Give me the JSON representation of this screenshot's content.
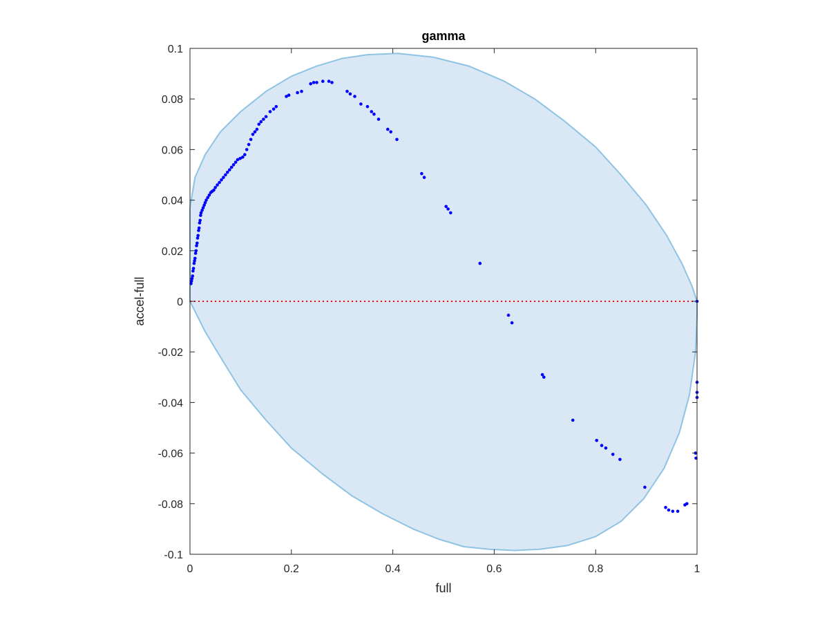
{
  "chart_data": {
    "type": "scatter",
    "title": "gamma",
    "xlabel": "full",
    "ylabel": "accel-full",
    "xlim": [
      0,
      1
    ],
    "ylim": [
      -0.1,
      0.1
    ],
    "x_ticks": [
      0,
      0.2,
      0.4,
      0.6,
      0.8,
      1
    ],
    "x_tick_labels": [
      "0",
      "0.2",
      "0.4",
      "0.6",
      "0.8",
      "1"
    ],
    "y_ticks": [
      -0.1,
      -0.08,
      -0.06,
      -0.04,
      -0.02,
      0,
      0.02,
      0.04,
      0.06,
      0.08,
      0.1
    ],
    "y_tick_labels": [
      "-0.1",
      "-0.08",
      "-0.06",
      "-0.04",
      "-0.02",
      "0",
      "0.02",
      "0.04",
      "0.06",
      "0.08",
      "0.1"
    ],
    "grid": false,
    "reference_line": {
      "y": 0,
      "color": "#ff0000",
      "style": "dotted"
    },
    "region": {
      "fill": "#d9e8f4",
      "stroke": "#8fc3e3",
      "boundary": [
        [
          0.0,
          0.037
        ],
        [
          0.01,
          0.049
        ],
        [
          0.03,
          0.058
        ],
        [
          0.06,
          0.067
        ],
        [
          0.1,
          0.075
        ],
        [
          0.15,
          0.083
        ],
        [
          0.2,
          0.089
        ],
        [
          0.25,
          0.093
        ],
        [
          0.3,
          0.096
        ],
        [
          0.35,
          0.0975
        ],
        [
          0.41,
          0.098
        ],
        [
          0.48,
          0.0965
        ],
        [
          0.55,
          0.093
        ],
        [
          0.62,
          0.087
        ],
        [
          0.68,
          0.08
        ],
        [
          0.74,
          0.071
        ],
        [
          0.8,
          0.061
        ],
        [
          0.85,
          0.05
        ],
        [
          0.9,
          0.038
        ],
        [
          0.94,
          0.026
        ],
        [
          0.97,
          0.015
        ],
        [
          0.99,
          0.006
        ],
        [
          1.0,
          0.0
        ],
        [
          1.0,
          -0.006
        ],
        [
          0.997,
          -0.02
        ],
        [
          0.985,
          -0.037
        ],
        [
          0.965,
          -0.052
        ],
        [
          0.935,
          -0.066
        ],
        [
          0.895,
          -0.078
        ],
        [
          0.85,
          -0.087
        ],
        [
          0.8,
          -0.093
        ],
        [
          0.745,
          -0.0965
        ],
        [
          0.69,
          -0.098
        ],
        [
          0.64,
          -0.0985
        ],
        [
          0.59,
          -0.098
        ],
        [
          0.54,
          -0.097
        ],
        [
          0.49,
          -0.094
        ],
        [
          0.44,
          -0.09
        ],
        [
          0.38,
          -0.084
        ],
        [
          0.32,
          -0.077
        ],
        [
          0.26,
          -0.068
        ],
        [
          0.2,
          -0.058
        ],
        [
          0.15,
          -0.047
        ],
        [
          0.1,
          -0.035
        ],
        [
          0.06,
          -0.022
        ],
        [
          0.03,
          -0.012
        ],
        [
          0.01,
          -0.004
        ],
        [
          0.0,
          0.0
        ]
      ]
    },
    "series": [
      {
        "color": "#0000ff",
        "points": [
          [
            0.002,
            0.007
          ],
          [
            0.003,
            0.008
          ],
          [
            0.004,
            0.009
          ],
          [
            0.005,
            0.01
          ],
          [
            0.006,
            0.012
          ],
          [
            0.007,
            0.013
          ],
          [
            0.008,
            0.015
          ],
          [
            0.009,
            0.016
          ],
          [
            0.01,
            0.017
          ],
          [
            0.011,
            0.019
          ],
          [
            0.012,
            0.02
          ],
          [
            0.013,
            0.022
          ],
          [
            0.014,
            0.023
          ],
          [
            0.015,
            0.025
          ],
          [
            0.016,
            0.026
          ],
          [
            0.017,
            0.028
          ],
          [
            0.018,
            0.029
          ],
          [
            0.019,
            0.031
          ],
          [
            0.02,
            0.032
          ],
          [
            0.021,
            0.034
          ],
          [
            0.022,
            0.035
          ],
          [
            0.024,
            0.036
          ],
          [
            0.026,
            0.037
          ],
          [
            0.028,
            0.038
          ],
          [
            0.03,
            0.039
          ],
          [
            0.032,
            0.04
          ],
          [
            0.035,
            0.041
          ],
          [
            0.038,
            0.042
          ],
          [
            0.041,
            0.043
          ],
          [
            0.044,
            0.0435
          ],
          [
            0.047,
            0.044
          ],
          [
            0.05,
            0.045
          ],
          [
            0.054,
            0.046
          ],
          [
            0.058,
            0.047
          ],
          [
            0.062,
            0.048
          ],
          [
            0.066,
            0.049
          ],
          [
            0.07,
            0.05
          ],
          [
            0.074,
            0.051
          ],
          [
            0.078,
            0.052
          ],
          [
            0.082,
            0.053
          ],
          [
            0.086,
            0.054
          ],
          [
            0.09,
            0.055
          ],
          [
            0.094,
            0.056
          ],
          [
            0.099,
            0.0565
          ],
          [
            0.104,
            0.057
          ],
          [
            0.108,
            0.058
          ],
          [
            0.112,
            0.06
          ],
          [
            0.116,
            0.062
          ],
          [
            0.12,
            0.064
          ],
          [
            0.124,
            0.066
          ],
          [
            0.128,
            0.067
          ],
          [
            0.132,
            0.068
          ],
          [
            0.136,
            0.07
          ],
          [
            0.14,
            0.071
          ],
          [
            0.145,
            0.072
          ],
          [
            0.15,
            0.073
          ],
          [
            0.158,
            0.075
          ],
          [
            0.165,
            0.076
          ],
          [
            0.17,
            0.077
          ],
          [
            0.19,
            0.081
          ],
          [
            0.195,
            0.0815
          ],
          [
            0.212,
            0.0825
          ],
          [
            0.22,
            0.083
          ],
          [
            0.238,
            0.086
          ],
          [
            0.244,
            0.0865
          ],
          [
            0.25,
            0.0865
          ],
          [
            0.262,
            0.087
          ],
          [
            0.274,
            0.087
          ],
          [
            0.28,
            0.0865
          ],
          [
            0.31,
            0.083
          ],
          [
            0.316,
            0.082
          ],
          [
            0.325,
            0.081
          ],
          [
            0.337,
            0.078
          ],
          [
            0.35,
            0.077
          ],
          [
            0.358,
            0.075
          ],
          [
            0.363,
            0.074
          ],
          [
            0.372,
            0.072
          ],
          [
            0.39,
            0.068
          ],
          [
            0.396,
            0.067
          ],
          [
            0.408,
            0.064
          ],
          [
            0.457,
            0.0505
          ],
          [
            0.462,
            0.049
          ],
          [
            0.505,
            0.0375
          ],
          [
            0.509,
            0.0365
          ],
          [
            0.514,
            0.035
          ],
          [
            0.572,
            0.015
          ],
          [
            0.628,
            -0.0055
          ],
          [
            0.635,
            -0.0085
          ],
          [
            0.695,
            -0.029
          ],
          [
            0.698,
            -0.03
          ],
          [
            0.755,
            -0.047
          ],
          [
            0.802,
            -0.055
          ],
          [
            0.812,
            -0.057
          ],
          [
            0.82,
            -0.058
          ],
          [
            0.834,
            -0.0605
          ],
          [
            0.848,
            -0.0625
          ],
          [
            0.897,
            -0.0735
          ],
          [
            0.938,
            -0.0815
          ],
          [
            0.944,
            -0.0825
          ],
          [
            0.952,
            -0.083
          ],
          [
            0.962,
            -0.083
          ],
          [
            0.976,
            -0.0805
          ],
          [
            0.98,
            -0.08
          ],
          [
            0.997,
            -0.06
          ],
          [
            0.998,
            -0.062
          ],
          [
            1.0,
            0.0
          ],
          [
            1.0,
            -0.032
          ],
          [
            1.0,
            -0.036
          ],
          [
            1.0,
            -0.038
          ]
        ]
      }
    ]
  }
}
